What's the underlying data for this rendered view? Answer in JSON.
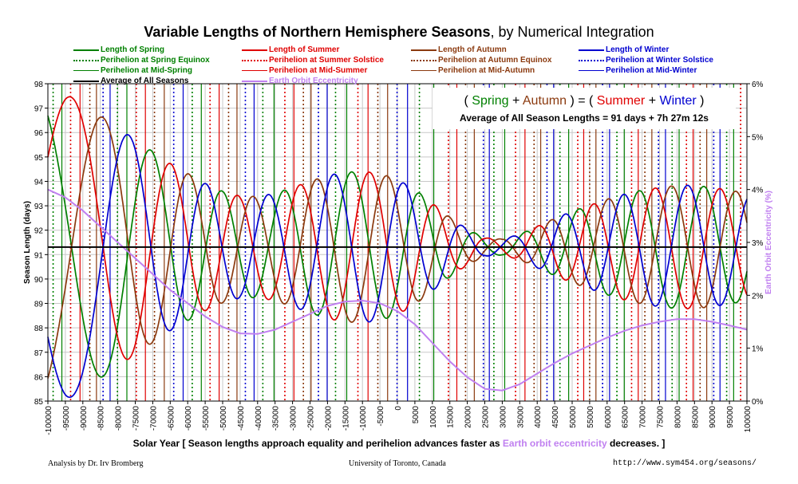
{
  "title": {
    "bold": "Variable Lengths of Northern Hemisphere Seasons",
    "rest": ", by Numerical Integration"
  },
  "legend": [
    {
      "label": "Length of Spring",
      "color": "#008000",
      "style": "solid"
    },
    {
      "label": "Perihelion at Spring Equinox",
      "color": "#008000",
      "style": "dotted"
    },
    {
      "label": "Perihelion at Mid-Spring",
      "color": "#008000",
      "style": "thin"
    },
    {
      "label": "Average of All Seasons",
      "color": "#000000",
      "style": "solid"
    },
    {
      "label": "Length of Summer",
      "color": "#e00000",
      "style": "solid"
    },
    {
      "label": "Perihelion at Summer Solstice",
      "color": "#e00000",
      "style": "dotted"
    },
    {
      "label": "Perihelion at Mid-Summer",
      "color": "#e00000",
      "style": "thin"
    },
    {
      "label": "Earth Orbit Eccentricity",
      "color": "#c080f0",
      "style": "solid"
    },
    {
      "label": "Length of Autumn",
      "color": "#8b3a0f",
      "style": "solid"
    },
    {
      "label": "Perihelion at Autumn Equinox",
      "color": "#8b3a0f",
      "style": "dotted"
    },
    {
      "label": "Perihelion at Mid-Autumn",
      "color": "#8b3a0f",
      "style": "thin"
    },
    {
      "label": "Length of Winter",
      "color": "#0000d0",
      "style": "solid"
    },
    {
      "label": "Perihelion at Winter Solstice",
      "color": "#0000d0",
      "style": "dotted"
    },
    {
      "label": "Perihelion at Mid-Winter",
      "color": "#0000d0",
      "style": "thin"
    }
  ],
  "annotation": {
    "open": "( ",
    "spring": "Spring",
    "plus1": " + ",
    "autumn": "Autumn",
    "mid": " ) = ( ",
    "summer": "Summer",
    "plus2": " + ",
    "winter": "Winter",
    "close": " )",
    "average": "Average of All Season Lengths = 91 days + 7h 27m 12s"
  },
  "xcaption": {
    "before": "Solar Year [ Season lengths approach equality and perihelion advances faster as ",
    "highlight": "Earth orbit eccentricity",
    "after": " decreases. ]"
  },
  "footer": {
    "left": "Analysis by Dr. Irv Bromberg",
    "center": "University of Toronto, Canada",
    "right": "http://www.sym454.org/seasons/"
  },
  "chart_data": {
    "type": "line",
    "ylabel": "Season Length (days)",
    "y2label": "Earth Orbit Eccentricity (%)",
    "xlim": [
      -100000,
      100000
    ],
    "ylim": [
      85,
      98
    ],
    "y2lim": [
      0,
      6
    ],
    "xticks": [
      -100000,
      -95000,
      -90000,
      -85000,
      -80000,
      -75000,
      -70000,
      -65000,
      -60000,
      -55000,
      -50000,
      -45000,
      -40000,
      -35000,
      -30000,
      -25000,
      -20000,
      -15000,
      -10000,
      -5000,
      0,
      5000,
      10000,
      15000,
      20000,
      25000,
      30000,
      35000,
      40000,
      45000,
      50000,
      55000,
      60000,
      65000,
      70000,
      75000,
      80000,
      85000,
      90000,
      95000,
      100000
    ],
    "yticks": [
      85,
      86,
      87,
      88,
      89,
      90,
      91,
      92,
      93,
      94,
      95,
      96,
      97,
      98
    ],
    "y2ticks": [
      "0%",
      "1%",
      "2%",
      "3%",
      "4%",
      "5%",
      "6%"
    ],
    "average": 91.31,
    "eccentricity": {
      "x": [
        -100000,
        -95000,
        -90000,
        -85000,
        -80000,
        -75000,
        -70000,
        -65000,
        -60000,
        -55000,
        -50000,
        -45000,
        -40000,
        -35000,
        -30000,
        -25000,
        -20000,
        -15000,
        -10000,
        -5000,
        0,
        5000,
        10000,
        15000,
        20000,
        25000,
        30000,
        35000,
        40000,
        45000,
        50000,
        55000,
        60000,
        65000,
        70000,
        75000,
        80000,
        85000,
        90000,
        95000,
        100000
      ],
      "y": [
        4.0,
        3.85,
        3.6,
        3.3,
        3.0,
        2.7,
        2.4,
        2.1,
        1.85,
        1.6,
        1.4,
        1.28,
        1.27,
        1.35,
        1.5,
        1.65,
        1.8,
        1.88,
        1.9,
        1.85,
        1.7,
        1.45,
        1.1,
        0.75,
        0.45,
        0.23,
        0.2,
        0.32,
        0.52,
        0.72,
        0.9,
        1.05,
        1.2,
        1.33,
        1.43,
        1.5,
        1.55,
        1.55,
        1.5,
        1.43,
        1.35
      ]
    },
    "perihelion_markers": {
      "spring_equinox": [
        -98500,
        -80100,
        -58700,
        -38500,
        -17700,
        6300,
        27600,
        46500,
        62800,
        78600,
        94200
      ],
      "summer_solstice": [
        -93500,
        -74700,
        -53600,
        -32200,
        -11300,
        14600,
        33800,
        51600,
        67000,
        82700,
        98200
      ],
      "autumn_equinox": [
        -88000,
        -69500,
        -48300,
        -26900,
        -5600,
        19500,
        39100,
        55000,
        70800,
        86600
      ],
      "winter_solstice": [
        -84200,
        -64000,
        -43500,
        -22600,
        -100,
        24600,
        42800,
        58700,
        74700,
        90500
      ],
      "mid_spring": [
        -96000,
        -77400,
        -56100,
        -35300,
        -14500,
        10400,
        30700,
        49000,
        64900,
        80600,
        96200
      ],
      "mid_summer": [
        -90800,
        -72100,
        -51000,
        -29600,
        -8400,
        17000,
        36500,
        53300,
        68900,
        84600
      ],
      "mid_autumn": [
        -86100,
        -66700,
        -45900,
        -24700,
        -2800,
        22000,
        41000,
        56800,
        72800,
        88500
      ],
      "mid_winter": [
        -82200,
        -61300,
        -41000,
        -20100,
        2900,
        26300,
        44700,
        60700,
        76700,
        92300
      ]
    },
    "series": [
      {
        "name": "Length of Spring",
        "color": "#008000"
      },
      {
        "name": "Length of Summer",
        "color": "#e00000"
      },
      {
        "name": "Length of Autumn",
        "color": "#8b3a0f"
      },
      {
        "name": "Length of Winter",
        "color": "#0000d0"
      }
    ]
  }
}
